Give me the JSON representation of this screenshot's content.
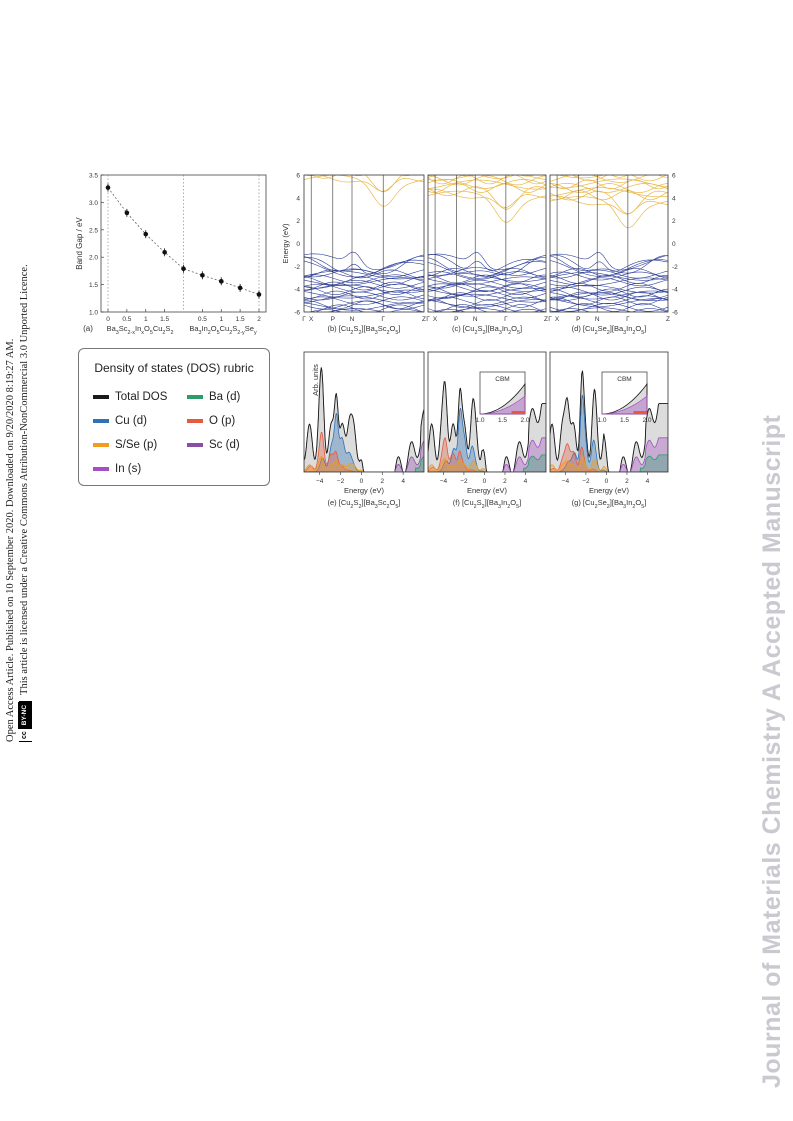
{
  "side_notice": {
    "line1": "Open Access Article. Published on 10 September 2020. Downloaded on 9/20/2020 8:19:27 AM.",
    "line2": "This article is licensed under a Creative Commons Attribution-NonCommercial 3.0 Unported Licence.",
    "cc_label": "cc",
    "license_badge": "BY-NC"
  },
  "watermark": "Journal of Materials Chemistry A Accepted Manuscript",
  "colors": {
    "total": "#1a1a1a",
    "ba": "#2a9d6b",
    "cu": "#2f72b5",
    "o": "#e45a3f",
    "sse": "#f29b1d",
    "sc": "#8a4fa5",
    "in": "#a44fc2",
    "valence": "#2e3f99",
    "conduction": "#e9b84a"
  },
  "panel_a": {
    "ylabel": "Band Gap / eV",
    "label": "(a)",
    "yticks": [
      "1.0",
      "1.5",
      "2.0",
      "2.5",
      "3.0",
      "3.5"
    ],
    "xticks_left": [
      "0",
      "0.5",
      "1",
      "1.5"
    ],
    "xticks_right": [
      "0.5",
      "1",
      "1.5",
      "2"
    ],
    "formula_left": "Ba3Sc2-xInxO5Cu2S2",
    "formula_right": "Ba3In2O5Cu2S2-ySey"
  },
  "chart_data": [
    {
      "type": "scatter",
      "ylabel": "Band Gap / eV",
      "ylim": [
        1.0,
        3.5
      ],
      "series": [
        {
          "x": [
            0,
            0.5,
            1,
            1.5,
            2,
            2.5,
            3,
            3.5,
            4
          ],
          "values": [
            3.27,
            2.81,
            2.42,
            2.09,
            1.79,
            1.67,
            1.56,
            1.44,
            1.32
          ]
        }
      ]
    },
    {
      "type": "line",
      "ylabel": "Energy (eV)",
      "ylim": [
        -6,
        6
      ],
      "kpath": [
        "Γ",
        "X",
        "P",
        "N",
        "Γ",
        "Z"
      ],
      "panels": [
        {
          "label": "(b) [Cu2S2][Ba3Sc2O5]",
          "gap": 3.2
        },
        {
          "label": "(c) [Cu2S2][Ba3In2O5]",
          "gap": 1.8
        },
        {
          "label": "(d) [Cu2Se2][Ba3In2O5]",
          "gap": 1.3
        }
      ]
    },
    {
      "type": "area",
      "xlabel": "Energy (eV)",
      "ylabel": "Arb. units",
      "xticks": [
        "-4",
        "-2",
        "0",
        "2",
        "4"
      ],
      "panels": [
        {
          "label": "(e) [Cu2S2][Ba3Sc2O5]",
          "inset": null
        },
        {
          "label": "(f) [Cu2S2][Ba3In2O5]",
          "inset": {
            "title": "CBM",
            "xticks": [
              "1.0",
              "1.5",
              "2.0"
            ]
          }
        },
        {
          "label": "(g) [Cu2Se2][Ba3In2O5]",
          "inset": {
            "title": "CBM",
            "xticks": [
              "1.0",
              "1.5",
              "2.0"
            ]
          }
        }
      ]
    }
  ],
  "legend": {
    "title": "Density of states (DOS) rubric",
    "items": [
      {
        "label": "Total DOS",
        "color": "#1a1a1a"
      },
      {
        "label": "Ba (d)",
        "color": "#2a9d6b"
      },
      {
        "label": "Cu (d)",
        "color": "#2f72b5"
      },
      {
        "label": "O (p)",
        "color": "#e45a3f"
      },
      {
        "label": "S/Se (p)",
        "color": "#f29b1d"
      },
      {
        "label": "Sc (d)",
        "color": "#8a4fa5"
      },
      {
        "label": "In (s)",
        "color": "#a44fc2"
      }
    ]
  },
  "band_labels": {
    "b": {
      "prefix": "(b) [Cu",
      "s1": "2",
      "mid1": "S",
      "s2": "2",
      "mid2": "][Ba",
      "s3": "3",
      "mid3": "Sc",
      "s4": "2",
      "mid4": "O",
      "s5": "5",
      "end": "]"
    },
    "c": {
      "prefix": "(c) [Cu",
      "s1": "2",
      "mid1": "S",
      "s2": "2",
      "mid2": "][Ba",
      "s3": "3",
      "mid3": "In",
      "s4": "2",
      "mid4": "O",
      "s5": "5",
      "end": "]"
    },
    "d": {
      "prefix": "(d) [Cu",
      "s1": "2",
      "mid1": "Se",
      "s2": "2",
      "mid2": "][Ba",
      "s3": "3",
      "mid3": "In",
      "s4": "2",
      "mid4": "O",
      "s5": "5",
      "end": "]"
    },
    "e": {
      "prefix": "(e) [Cu",
      "s1": "2",
      "mid1": "S",
      "s2": "2",
      "mid2": "][Ba",
      "s3": "3",
      "mid3": "Sc",
      "s4": "2",
      "mid4": "O",
      "s5": "5",
      "end": "]"
    },
    "f": {
      "prefix": "(f) [Cu",
      "s1": "2",
      "mid1": "S",
      "s2": "2",
      "mid2": "][Ba",
      "s3": "3",
      "mid3": "In",
      "s4": "2",
      "mid4": "O",
      "s5": "5",
      "end": "]"
    },
    "g": {
      "prefix": "(g) [Cu",
      "s1": "2",
      "mid1": "Se",
      "s2": "2",
      "mid2": "][Ba",
      "s3": "3",
      "mid3": "In",
      "s4": "2",
      "mid4": "O",
      "s5": "5",
      "end": "]"
    }
  },
  "band_yticks": [
    "6",
    "4",
    "2",
    "0",
    "-2",
    "-4",
    "-6"
  ],
  "dos_xlabel": "Energy (eV)",
  "dos_ylabel": "Arb. units"
}
